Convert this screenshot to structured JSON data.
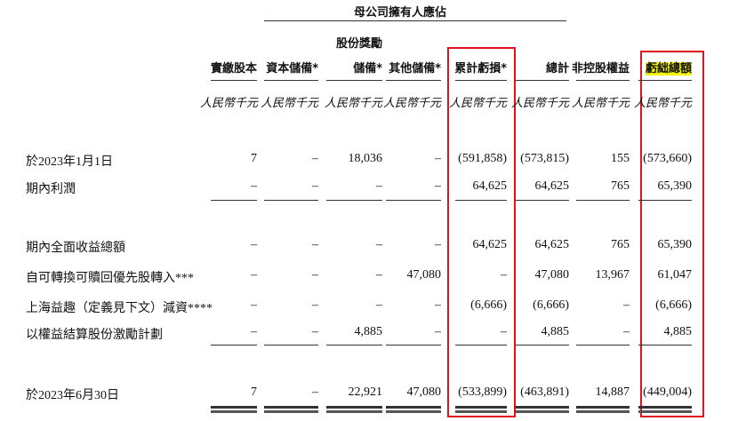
{
  "header": {
    "group_title": "母公司擁有人應佔",
    "share_award_top": "股份獎勵",
    "columns": [
      "實繳股本",
      "資本儲備*",
      "儲備*",
      "其他儲備*",
      "累計虧損*",
      "總計",
      "非控股權益",
      "虧絀總額"
    ],
    "unit": "人民幣千元"
  },
  "highlight_color": "#f5f500",
  "box_color": "#e0141e",
  "rows": [
    {
      "label": "於2023年1月1日",
      "values": [
        "7",
        "–",
        "18,036",
        "–",
        "(591,858)",
        "(573,815)",
        "155",
        "(573,660)"
      ]
    },
    {
      "label": "期內利潤",
      "values": [
        "–",
        "–",
        "–",
        "–",
        "64,625",
        "64,625",
        "765",
        "65,390"
      ]
    },
    {
      "label": "期內全面收益總額",
      "values": [
        "–",
        "–",
        "–",
        "–",
        "64,625",
        "64,625",
        "765",
        "65,390"
      ]
    },
    {
      "label": "自可轉換可贖回優先股轉入***",
      "values": [
        "–",
        "–",
        "–",
        "47,080",
        "–",
        "47,080",
        "13,967",
        "61,047"
      ]
    },
    {
      "label": "上海益趣（定義見下文）減資****",
      "values": [
        "–",
        "–",
        "–",
        "–",
        "(6,666)",
        "(6,666)",
        "–",
        "(6,666)"
      ]
    },
    {
      "label": "以權益結算股份激勵計劃",
      "values": [
        "–",
        "–",
        "4,885",
        "–",
        "–",
        "4,885",
        "–",
        "4,885"
      ]
    },
    {
      "label": "於2023年6月30日",
      "values": [
        "7",
        "–",
        "22,921",
        "47,080",
        "(533,899)",
        "(463,891)",
        "14,887",
        "(449,004)"
      ]
    }
  ]
}
